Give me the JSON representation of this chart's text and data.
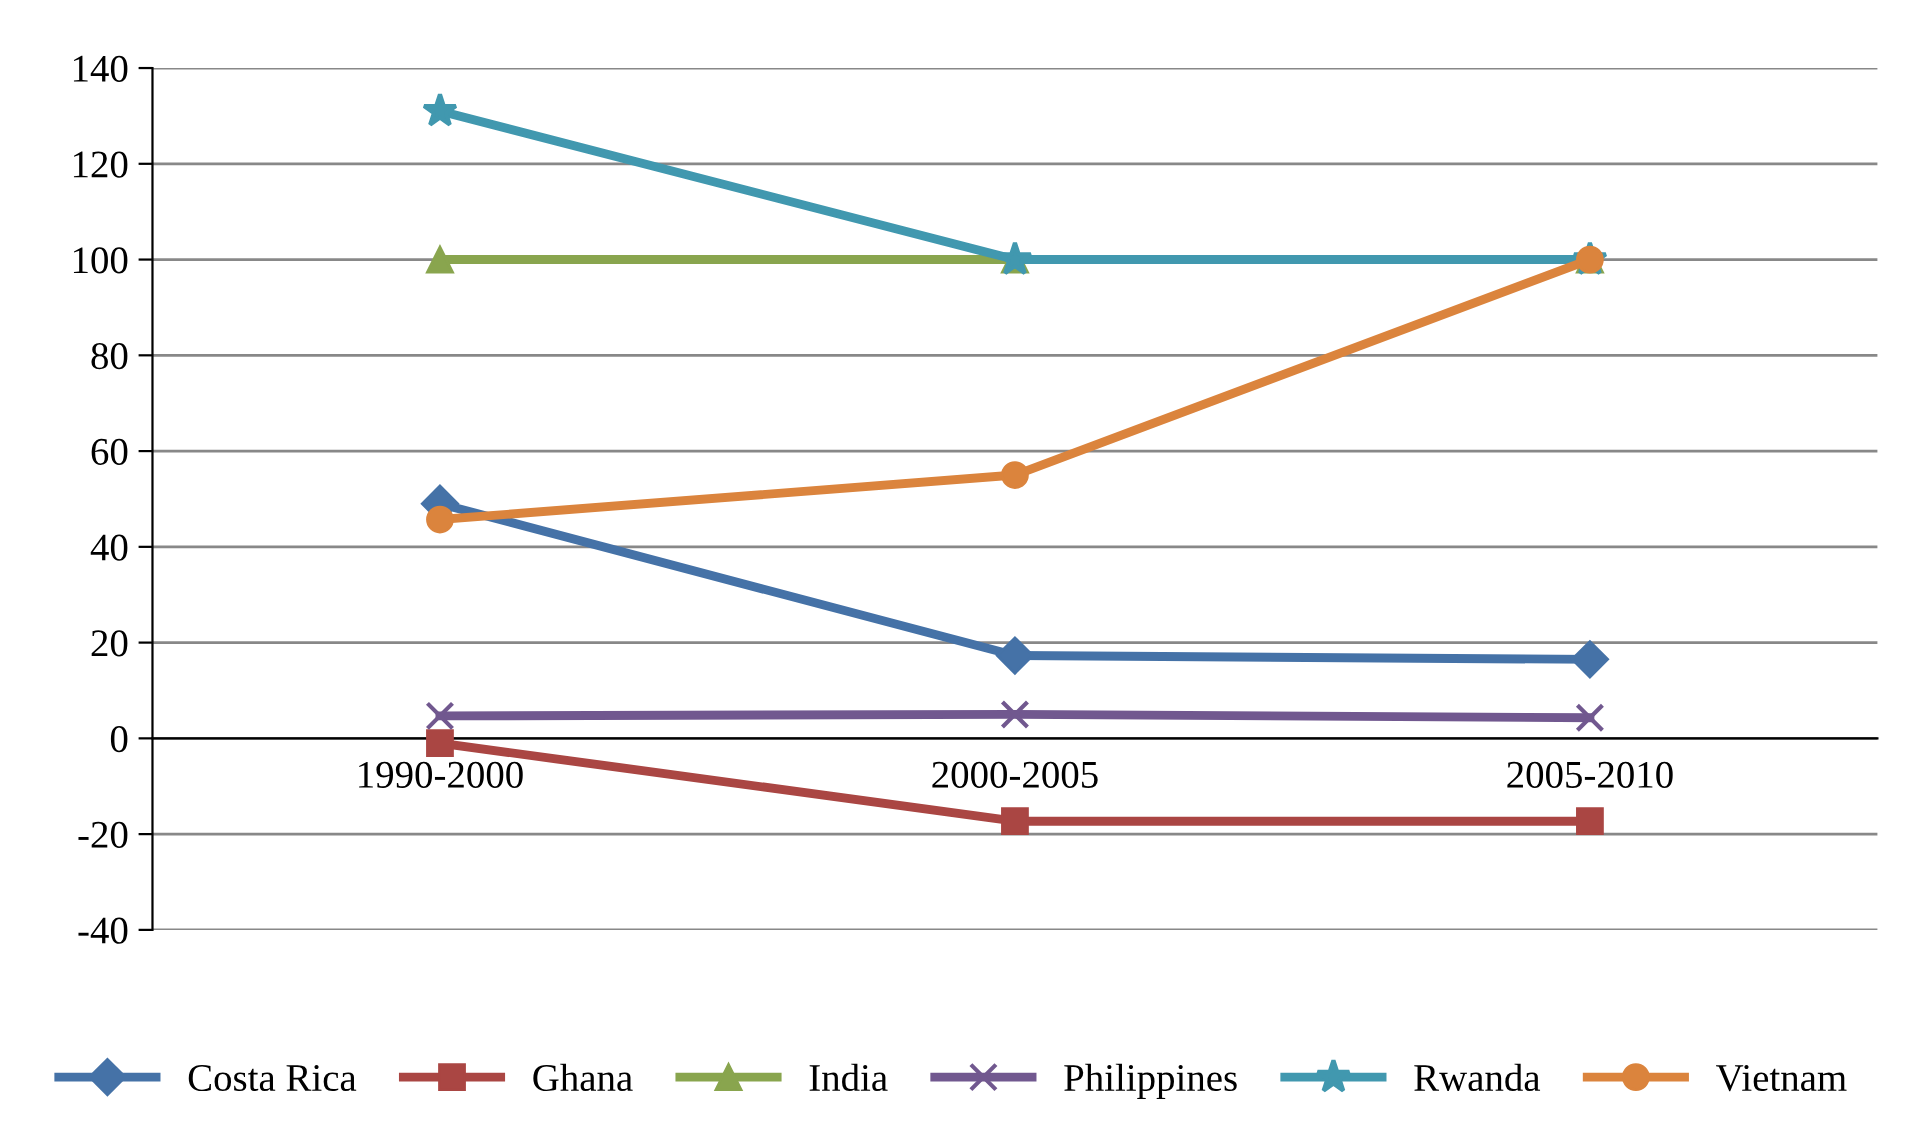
{
  "chart_data": {
    "type": "line",
    "categories": [
      "1990-2000",
      "2000-2005",
      "2005-2010"
    ],
    "series": [
      {
        "name": "Costa Rica",
        "color": "#4572a7",
        "marker": "diamond",
        "values": [
          49,
          17.3,
          16.5
        ]
      },
      {
        "name": "Ghana",
        "color": "#aa4643",
        "marker": "square",
        "values": [
          -1,
          -17.3,
          -17.3
        ]
      },
      {
        "name": "India",
        "color": "#89a54e",
        "marker": "triangle",
        "values": [
          100,
          100,
          100
        ]
      },
      {
        "name": "Philippines",
        "color": "#71588f",
        "marker": "cross",
        "values": [
          4.7,
          5,
          4.3
        ]
      },
      {
        "name": "Rwanda",
        "color": "#4198af",
        "marker": "star",
        "values": [
          131,
          100,
          100
        ]
      },
      {
        "name": "Vietnam",
        "color": "#db843d",
        "marker": "circle",
        "values": [
          45.7,
          55,
          100
        ]
      }
    ],
    "ylim": [
      -40,
      140
    ],
    "yticks": [
      -40,
      -20,
      0,
      20,
      40,
      60,
      80,
      100,
      120,
      140
    ],
    "grid": "y",
    "legend": "bottom",
    "line_style": "solid"
  }
}
